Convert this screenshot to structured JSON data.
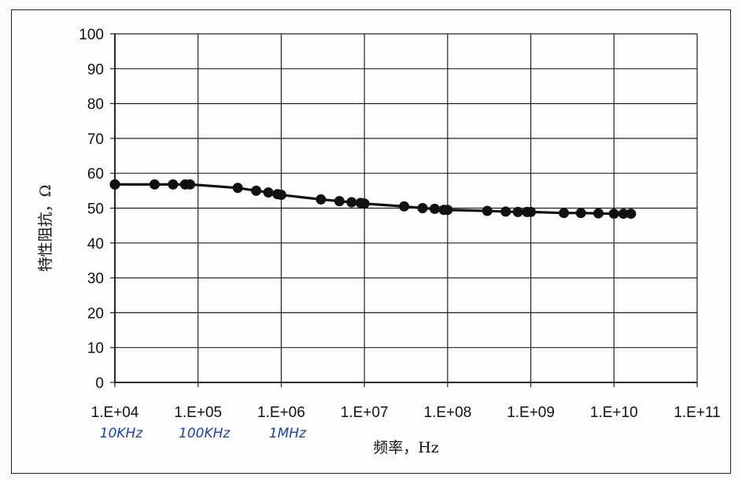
{
  "chart_data": {
    "type": "line",
    "xlabel": "频率，Hz",
    "ylabel": "特性阻抗，Ω",
    "x_scale": "log",
    "xlim": [
      10000,
      100000000000
    ],
    "ylim": [
      0,
      100
    ],
    "y_ticks": [
      "0",
      "10",
      "20",
      "30",
      "40",
      "50",
      "60",
      "70",
      "80",
      "90",
      "100"
    ],
    "x_ticks": [
      "1.E+04",
      "1.E+05",
      "1.E+06",
      "1.E+07",
      "1.E+08",
      "1.E+09",
      "1.E+10",
      "1.E+11"
    ],
    "grid": true,
    "handwritten_annotations": [
      "10KHz",
      "100KHz",
      "1MHz"
    ],
    "series": [
      {
        "x": [
          9000,
          10000,
          30000,
          50000,
          70000,
          80000,
          300000,
          500000,
          700000,
          900000,
          1000000,
          3000000,
          5000000,
          7000000,
          9000000,
          10000000,
          30000000,
          50000000,
          70000000,
          90000000,
          100000000,
          300000000,
          500000000,
          700000000,
          900000000,
          1000000000,
          2500000000,
          4000000000,
          6500000000,
          10000000000,
          13000000000,
          16000000000
        ],
        "y": [
          56.8,
          56.8,
          56.8,
          56.8,
          56.8,
          56.8,
          55.8,
          55,
          54.5,
          54,
          53.8,
          52.5,
          52,
          51.7,
          51.5,
          51.3,
          50.5,
          50,
          49.8,
          49.5,
          49.5,
          49.2,
          49,
          48.9,
          48.9,
          48.9,
          48.6,
          48.6,
          48.5,
          48.4,
          48.4,
          48.4
        ]
      }
    ]
  }
}
